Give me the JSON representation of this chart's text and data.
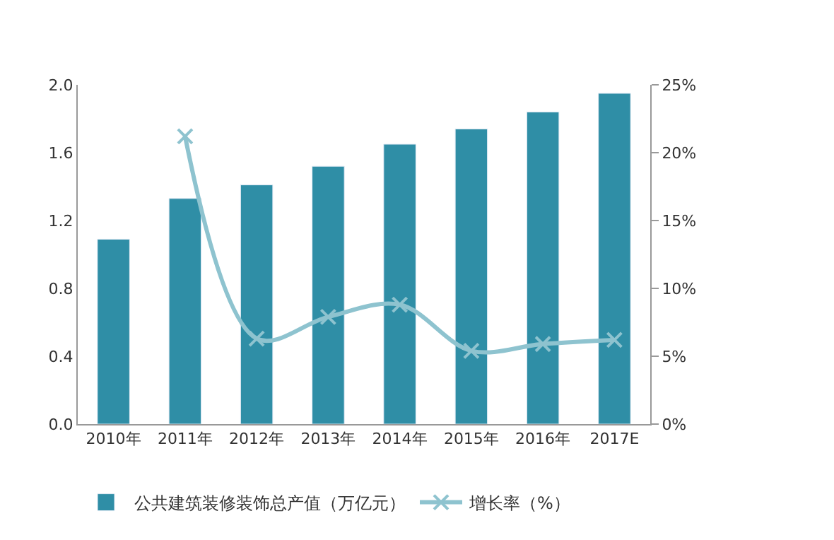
{
  "chart_data": {
    "type": "bar",
    "categories": [
      "2010年",
      "2011年",
      "2012年",
      "2013年",
      "2014年",
      "2015年",
      "2016年",
      "2017E"
    ],
    "series": [
      {
        "name": "公共建筑装修装饰总产值（万亿元）",
        "color": "#2f8ea6",
        "values": [
          1.09,
          1.33,
          1.41,
          1.52,
          1.65,
          1.74,
          1.84,
          1.95
        ]
      },
      {
        "name": "增长率（%）",
        "type": "line",
        "axis": "y2",
        "color": "#8ec3cf",
        "marker": "cross",
        "values": [
          null,
          21.2,
          6.3,
          7.9,
          8.8,
          5.4,
          5.9,
          6.2
        ]
      }
    ],
    "ylim": [
      0,
      2.0
    ],
    "yticks": [
      {
        "value": 0,
        "label": "0.0"
      },
      0.4,
      0.8,
      1.2,
      1.6,
      {
        "value": 2,
        "label": "2.0"
      }
    ],
    "y2lim": [
      0,
      25
    ],
    "y2ticks": [
      {
        "value": 0,
        "label": "0%"
      },
      {
        "value": 5,
        "label": "5%"
      },
      {
        "value": 10,
        "label": "10%"
      },
      {
        "value": 15,
        "label": "15%"
      },
      {
        "value": 20,
        "label": "20%"
      },
      {
        "value": 25,
        "label": "25%"
      }
    ],
    "legend": "bottom"
  }
}
